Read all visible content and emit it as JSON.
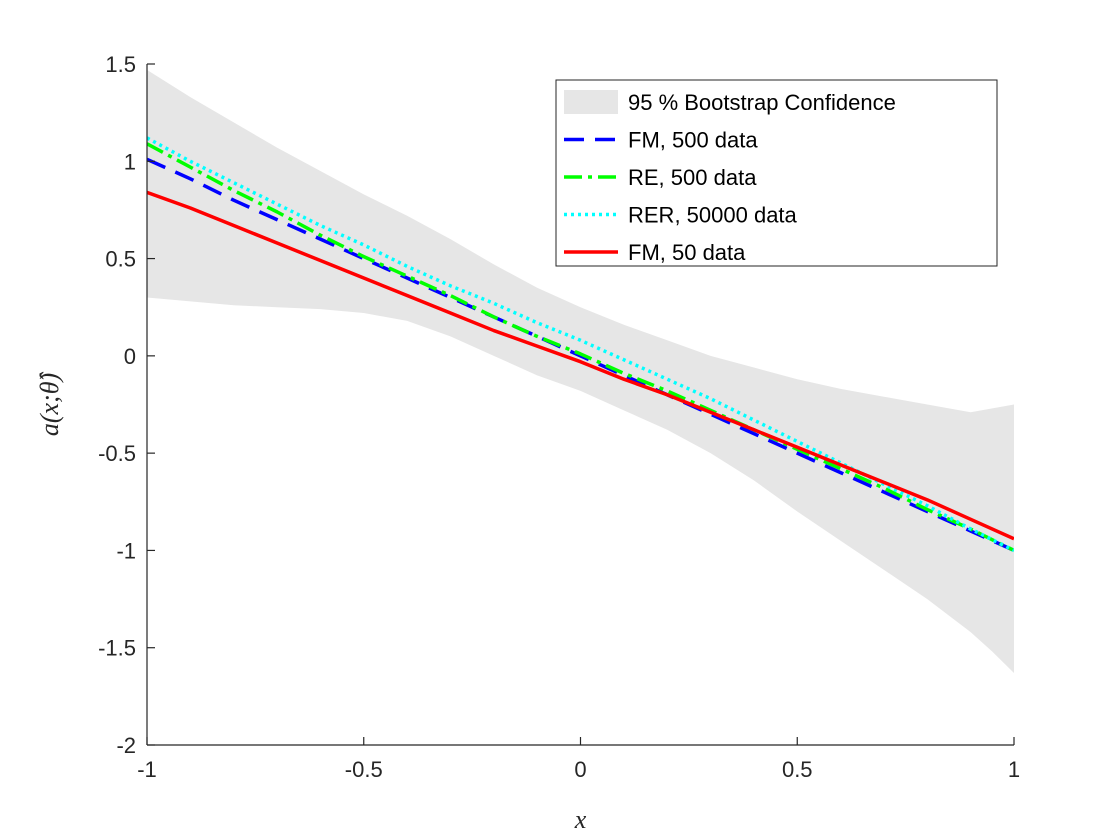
{
  "chart_data": {
    "type": "line",
    "title": "",
    "xlabel": "x",
    "ylabel": "a(x;θ̂)",
    "xlim": [
      -1,
      1
    ],
    "ylim": [
      -2,
      1.5
    ],
    "xticks": [
      -1,
      -0.5,
      0,
      0.5,
      1
    ],
    "xtick_labels": [
      "-1",
      "-0.5",
      "0",
      "0.5",
      "1"
    ],
    "yticks": [
      -2,
      -1.5,
      -1,
      -0.5,
      0,
      0.5,
      1,
      1.5
    ],
    "ytick_labels": [
      "-2",
      "-1.5",
      "-1",
      "-0.5",
      "0",
      "0.5",
      "1",
      "1.5"
    ],
    "grid": false,
    "legend_position": "top-right",
    "band": {
      "name": "95 % Bootstrap Confidence",
      "color": "#e6e6e6",
      "x": [
        -1,
        -0.9,
        -0.8,
        -0.7,
        -0.6,
        -0.5,
        -0.4,
        -0.3,
        -0.2,
        -0.1,
        0,
        0.1,
        0.2,
        0.3,
        0.4,
        0.5,
        0.6,
        0.7,
        0.8,
        0.9,
        0.95,
        1
      ],
      "upper": [
        1.47,
        1.33,
        1.2,
        1.07,
        0.95,
        0.83,
        0.72,
        0.6,
        0.47,
        0.35,
        0.25,
        0.16,
        0.08,
        0.0,
        -0.06,
        -0.12,
        -0.17,
        -0.21,
        -0.25,
        -0.29,
        -0.27,
        -0.25
      ],
      "lower": [
        0.3,
        0.28,
        0.26,
        0.25,
        0.24,
        0.22,
        0.18,
        0.1,
        0.0,
        -0.1,
        -0.18,
        -0.28,
        -0.38,
        -0.5,
        -0.64,
        -0.8,
        -0.95,
        -1.1,
        -1.25,
        -1.42,
        -1.52,
        -1.63
      ]
    },
    "series": [
      {
        "name": "FM, 500 data",
        "color": "#0000ff",
        "style": "dashed",
        "x": [
          -1,
          -0.9,
          -0.8,
          -0.7,
          -0.6,
          -0.5,
          -0.4,
          -0.3,
          -0.2,
          -0.1,
          0,
          0.1,
          0.2,
          0.3,
          0.4,
          0.5,
          0.6,
          0.7,
          0.8,
          0.9,
          1
        ],
        "values": [
          1.01,
          0.91,
          0.8,
          0.7,
          0.6,
          0.5,
          0.4,
          0.3,
          0.2,
          0.1,
          0.0,
          -0.1,
          -0.2,
          -0.3,
          -0.4,
          -0.5,
          -0.6,
          -0.7,
          -0.8,
          -0.9,
          -1.0
        ]
      },
      {
        "name": "RE, 500 data",
        "color": "#00ff00",
        "style": "dashdot",
        "x": [
          -1,
          -0.9,
          -0.8,
          -0.7,
          -0.6,
          -0.5,
          -0.4,
          -0.3,
          -0.2,
          -0.1,
          0,
          0.1,
          0.2,
          0.3,
          0.4,
          0.5,
          0.6,
          0.7,
          0.8,
          0.9,
          1
        ],
        "values": [
          1.09,
          0.97,
          0.85,
          0.74,
          0.62,
          0.51,
          0.41,
          0.31,
          0.2,
          0.1,
          0.01,
          -0.09,
          -0.18,
          -0.28,
          -0.38,
          -0.48,
          -0.58,
          -0.68,
          -0.79,
          -0.89,
          -1.0
        ]
      },
      {
        "name": "RER, 50000 data",
        "color": "#00ffff",
        "style": "dotted",
        "x": [
          -1,
          -0.9,
          -0.8,
          -0.7,
          -0.6,
          -0.5,
          -0.4,
          -0.3,
          -0.2,
          -0.1,
          0,
          0.1,
          0.2,
          0.3,
          0.4,
          0.5,
          0.6,
          0.7,
          0.8,
          0.9,
          1
        ],
        "values": [
          1.12,
          1.0,
          0.89,
          0.78,
          0.67,
          0.57,
          0.46,
          0.36,
          0.27,
          0.17,
          0.08,
          -0.02,
          -0.12,
          -0.22,
          -0.33,
          -0.44,
          -0.55,
          -0.66,
          -0.77,
          -0.89,
          -1.0
        ]
      },
      {
        "name": "FM, 50 data",
        "color": "#ff0000",
        "style": "solid",
        "x": [
          -1,
          -0.9,
          -0.8,
          -0.7,
          -0.6,
          -0.5,
          -0.4,
          -0.3,
          -0.2,
          -0.1,
          0,
          0.1,
          0.2,
          0.3,
          0.4,
          0.5,
          0.6,
          0.7,
          0.8,
          0.9,
          1
        ],
        "values": [
          0.84,
          0.76,
          0.67,
          0.58,
          0.49,
          0.4,
          0.31,
          0.22,
          0.13,
          0.05,
          -0.03,
          -0.12,
          -0.2,
          -0.29,
          -0.38,
          -0.47,
          -0.56,
          -0.65,
          -0.74,
          -0.84,
          -0.94
        ]
      }
    ]
  }
}
